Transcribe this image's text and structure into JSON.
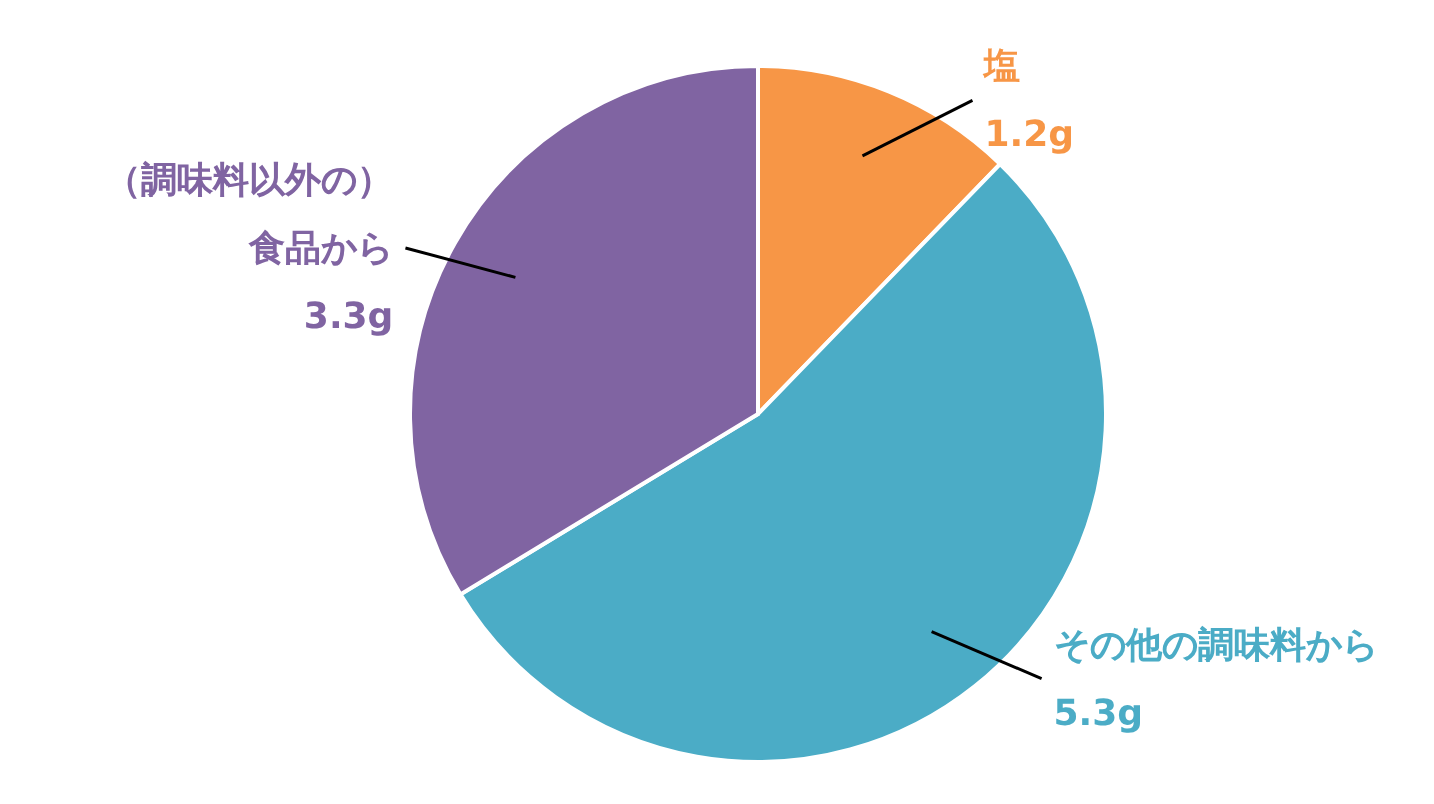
{
  "chart_data": {
    "type": "pie",
    "categories": [
      "塩",
      "その他の調味料から",
      "（調味料以外の）食品から"
    ],
    "values": [
      1.2,
      5.3,
      3.3
    ],
    "value_labels": [
      "1.2g",
      "5.3g",
      "3.3g"
    ],
    "colors": [
      "#f79646",
      "#4bacc6",
      "#8064a2"
    ],
    "legend": false
  }
}
